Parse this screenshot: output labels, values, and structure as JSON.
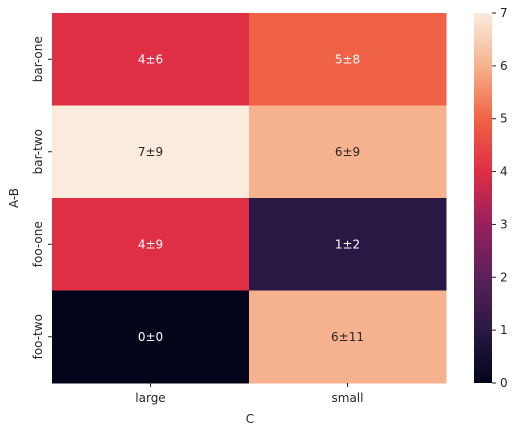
{
  "chart_data": {
    "type": "heatmap",
    "xlabel": "C",
    "ylabel": "A-B",
    "x_categories": [
      "large",
      "small"
    ],
    "y_categories": [
      "bar-one",
      "bar-two",
      "foo-one",
      "foo-two"
    ],
    "values": [
      [
        4,
        5
      ],
      [
        7,
        6
      ],
      [
        4,
        1
      ],
      [
        0,
        6
      ]
    ],
    "annotations": [
      [
        "4±6",
        "5±8"
      ],
      [
        "7±9",
        "6±9"
      ],
      [
        "4±9",
        "1±2"
      ],
      [
        "0±0",
        "6±11"
      ]
    ],
    "colorbar": {
      "min": 0,
      "max": 7,
      "ticks": [
        "0",
        "1",
        "2",
        "3",
        "4",
        "5",
        "6",
        "7"
      ]
    },
    "colormap": "rocket"
  }
}
